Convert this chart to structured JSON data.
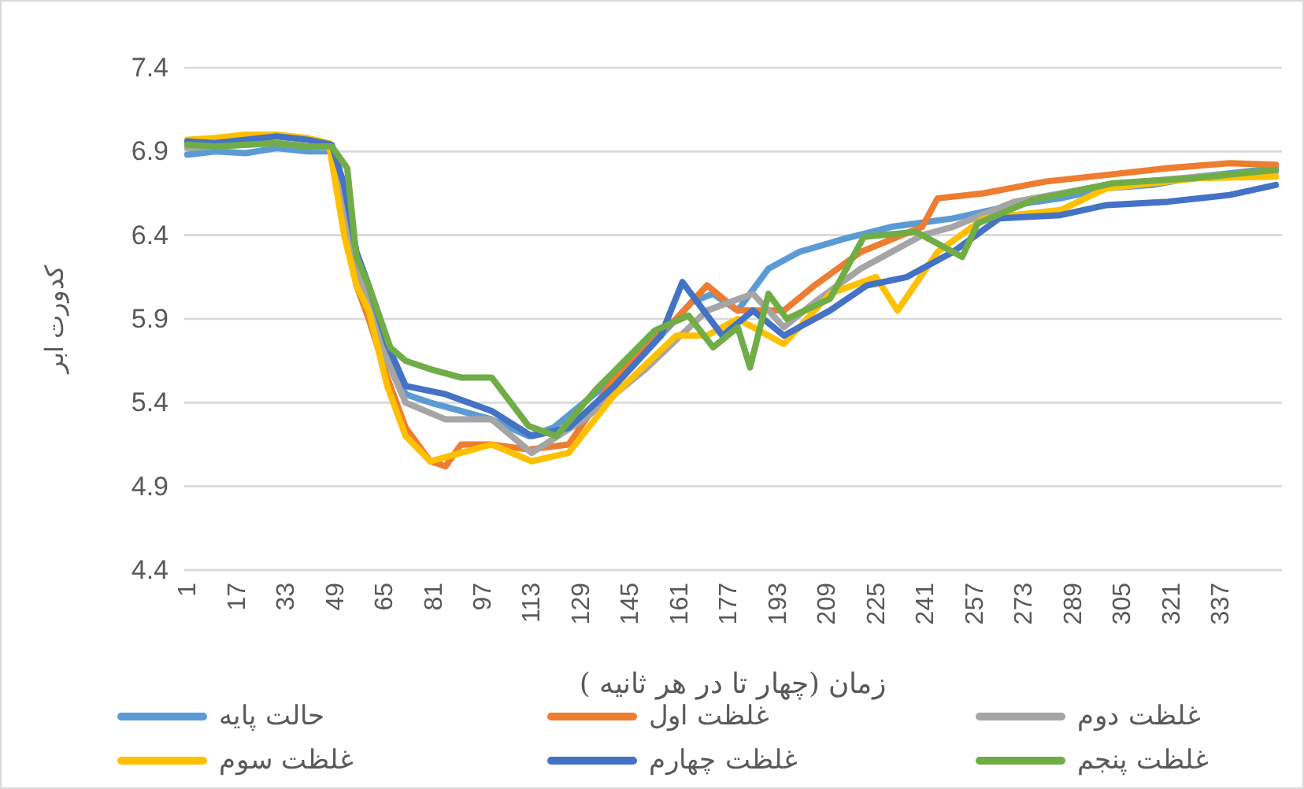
{
  "chart_data": {
    "type": "line",
    "xlabel": "زمان (چهار تا در هر ثانیه )",
    "ylabel": "کدورت ابر",
    "xlim": [
      0,
      357
    ],
    "xticks": [
      1,
      17,
      33,
      49,
      65,
      81,
      97,
      113,
      129,
      145,
      161,
      177,
      193,
      209,
      225,
      241,
      257,
      273,
      289,
      305,
      321,
      337
    ],
    "ylim": [
      4.4,
      7.4
    ],
    "yticks": [
      4.4,
      4.9,
      5.4,
      5.9,
      6.4,
      6.9,
      7.4
    ],
    "grid": "y",
    "legend": "bottom",
    "line_style": "solid",
    "marker": "none",
    "series": [
      {
        "name": "حالت پایه",
        "color": "#5b9bd5",
        "x": [
          1,
          10,
          20,
          30,
          40,
          48,
          52,
          56,
          60,
          66,
          72,
          80,
          90,
          100,
          112,
          120,
          130,
          140,
          150,
          160,
          165,
          172,
          180,
          190,
          200,
          215,
          230,
          250,
          270,
          285,
          300,
          315,
          330,
          345,
          355
        ],
        "values": [
          6.88,
          6.9,
          6.89,
          6.92,
          6.9,
          6.9,
          6.6,
          6.25,
          6.05,
          5.7,
          5.45,
          5.4,
          5.35,
          5.3,
          5.2,
          5.25,
          5.4,
          5.55,
          5.7,
          5.9,
          6.0,
          6.05,
          5.95,
          6.2,
          6.3,
          6.38,
          6.45,
          6.5,
          6.58,
          6.62,
          6.68,
          6.7,
          6.75,
          6.78,
          6.8
        ]
      },
      {
        "name": "غلظت اول",
        "color": "#ed7d31",
        "x": [
          52,
          56,
          60,
          66,
          72,
          80,
          85,
          90,
          100,
          112,
          125,
          140,
          150,
          160,
          170,
          180,
          195,
          205,
          220,
          240,
          245,
          260,
          280,
          300,
          320,
          340,
          355
        ],
        "values": [
          6.5,
          6.1,
          5.9,
          5.55,
          5.25,
          5.05,
          5.02,
          5.15,
          5.15,
          5.12,
          5.15,
          5.55,
          5.75,
          5.9,
          6.1,
          5.95,
          5.95,
          6.1,
          6.3,
          6.45,
          6.62,
          6.65,
          6.72,
          6.76,
          6.8,
          6.83,
          6.82
        ]
      },
      {
        "name": "غلظت دوم",
        "color": "#a5a5a5",
        "x": [
          1,
          10,
          20,
          30,
          40,
          48,
          52,
          56,
          60,
          66,
          72,
          85,
          100,
          113,
          130,
          150,
          170,
          185,
          195,
          205,
          220,
          240,
          250,
          270,
          300,
          330,
          355
        ],
        "values": [
          6.92,
          6.93,
          6.94,
          6.95,
          6.93,
          6.92,
          6.6,
          6.2,
          6.0,
          5.65,
          5.4,
          5.3,
          5.3,
          5.1,
          5.3,
          5.6,
          5.95,
          6.05,
          5.85,
          6.0,
          6.2,
          6.4,
          6.45,
          6.6,
          6.7,
          6.75,
          6.78
        ]
      },
      {
        "name": "غلظت سوم",
        "color": "#ffc000",
        "x": [
          1,
          10,
          20,
          30,
          40,
          47,
          52,
          56,
          60,
          66,
          72,
          80,
          90,
          100,
          113,
          125,
          140,
          160,
          170,
          180,
          195,
          210,
          225,
          232,
          245,
          260,
          285,
          300,
          330,
          355
        ],
        "values": [
          6.97,
          6.98,
          7.0,
          7.0,
          6.98,
          6.95,
          6.4,
          6.1,
          5.95,
          5.5,
          5.2,
          5.05,
          5.1,
          5.15,
          5.05,
          5.1,
          5.45,
          5.8,
          5.8,
          5.9,
          5.75,
          6.05,
          6.15,
          5.95,
          6.3,
          6.5,
          6.55,
          6.68,
          6.74,
          6.75
        ]
      },
      {
        "name": "غلظت چهارم",
        "color": "#4472c4",
        "x": [
          1,
          10,
          20,
          30,
          40,
          48,
          52,
          56,
          60,
          66,
          72,
          85,
          100,
          113,
          125,
          140,
          155,
          162,
          175,
          185,
          195,
          210,
          222,
          235,
          250,
          265,
          285,
          300,
          320,
          340,
          355
        ],
        "values": [
          6.96,
          6.95,
          6.97,
          6.99,
          6.97,
          6.94,
          6.7,
          6.3,
          6.1,
          5.75,
          5.5,
          5.45,
          5.35,
          5.2,
          5.25,
          5.5,
          5.8,
          6.12,
          5.8,
          5.95,
          5.8,
          5.95,
          6.1,
          6.15,
          6.3,
          6.5,
          6.52,
          6.58,
          6.6,
          6.64,
          6.7
        ]
      },
      {
        "name": "غلظت پنجم",
        "color": "#70ad47",
        "x": [
          1,
          10,
          20,
          30,
          40,
          48,
          53,
          56,
          60,
          67,
          72,
          80,
          90,
          100,
          112,
          121,
          134,
          153,
          164,
          172,
          180,
          184,
          190,
          196,
          210,
          221,
          238,
          246,
          253,
          258,
          276,
          302,
          328,
          355
        ],
        "values": [
          6.94,
          6.93,
          6.94,
          6.95,
          6.93,
          6.93,
          6.8,
          6.27,
          6.1,
          5.73,
          5.65,
          5.6,
          5.55,
          5.55,
          5.26,
          5.2,
          5.48,
          5.83,
          5.92,
          5.73,
          5.85,
          5.61,
          6.05,
          5.9,
          6.02,
          6.39,
          6.42,
          6.34,
          6.27,
          6.47,
          6.61,
          6.71,
          6.74,
          6.79
        ]
      }
    ]
  }
}
